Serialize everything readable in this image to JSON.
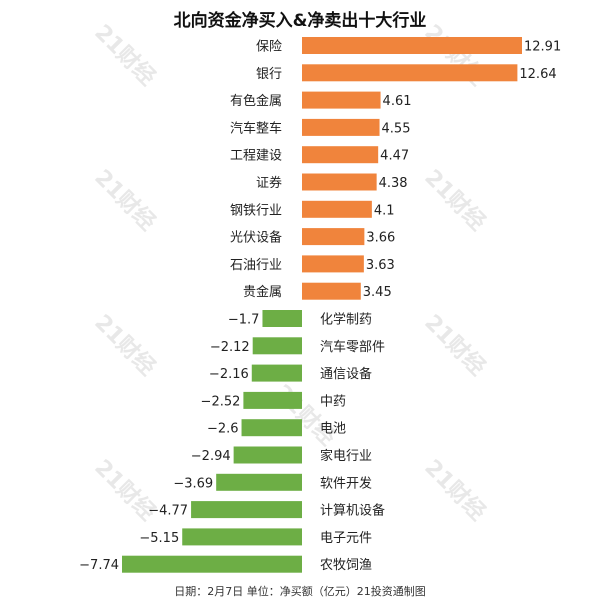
{
  "chart_data": {
    "type": "bar",
    "orientation": "horizontal",
    "title": "北向资金净买入&净卖出十大行业",
    "categories": [
      "保险",
      "银行",
      "有色金属",
      "汽车整车",
      "工程建设",
      "证券",
      "钢铁行业",
      "光伏设备",
      "石油行业",
      "贵金属",
      "化学制药",
      "汽车零部件",
      "通信设备",
      "中药",
      "电池",
      "家电行业",
      "软件开发",
      "计算机设备",
      "电子元件",
      "农牧饲渔"
    ],
    "values": [
      12.91,
      12.64,
      4.61,
      4.55,
      4.47,
      4.38,
      4.1,
      3.66,
      3.63,
      3.45,
      -1.7,
      -2.12,
      -2.16,
      -2.52,
      -2.6,
      -2.94,
      -3.69,
      -4.77,
      -5.15,
      -7.74
    ],
    "value_labels": [
      "12.91",
      "12.64",
      "4.61",
      "4.55",
      "4.47",
      "4.38",
      "4.1",
      "3.66",
      "3.63",
      "3.45",
      "−1.7",
      "−2.12",
      "−2.16",
      "−2.52",
      "−2.6",
      "−2.94",
      "−3.69",
      "−4.77",
      "−5.15",
      "−7.74"
    ],
    "colors": {
      "positive": "#F0843C",
      "negative": "#6DAE45"
    },
    "xlim": [
      -7.74,
      12.91
    ],
    "grid": false,
    "legend": "none"
  },
  "footer": "日期：2月7日 单位：净买额（亿元）21投资通制图",
  "watermark": "21财经"
}
